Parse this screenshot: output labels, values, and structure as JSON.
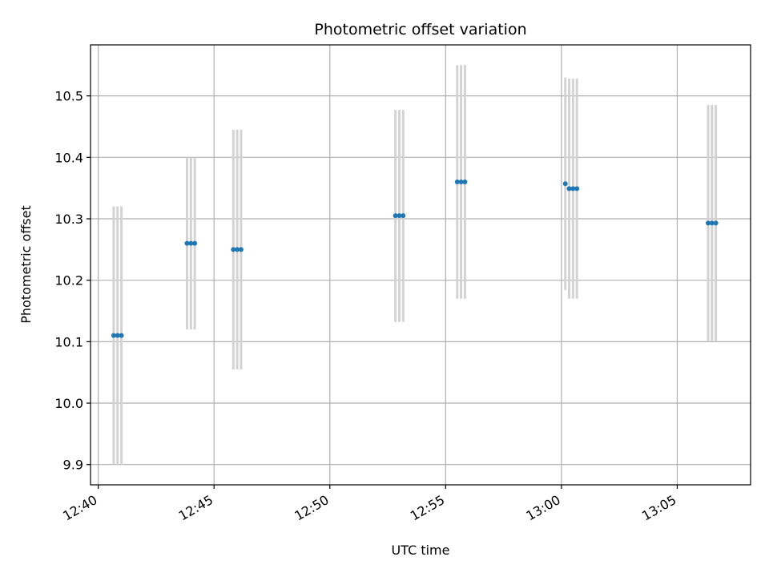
{
  "chart_data": {
    "type": "scatter",
    "title": "Photometric offset variation",
    "xlabel": "UTC time",
    "ylabel": "Photometric offset",
    "x_axis_type": "time",
    "xlim": [
      "12:39:40",
      "13:08:10"
    ],
    "ylim": [
      9.867,
      10.583
    ],
    "x_ticks": [
      "12:40",
      "12:45",
      "12:50",
      "12:55",
      "13:00",
      "13:05"
    ],
    "y_ticks": [
      9.9,
      10.0,
      10.1,
      10.2,
      10.3,
      10.4,
      10.5
    ],
    "grid": true,
    "marker_color": "#1f77b4",
    "errorbar_color": "#d3d3d3",
    "points": [
      {
        "t": "12:40:40",
        "y": 10.11,
        "ylo": 9.9,
        "yhi": 10.32
      },
      {
        "t": "12:40:50",
        "y": 10.11,
        "ylo": 9.9,
        "yhi": 10.32
      },
      {
        "t": "12:41:00",
        "y": 10.11,
        "ylo": 9.9,
        "yhi": 10.32
      },
      {
        "t": "12:43:50",
        "y": 10.26,
        "ylo": 10.12,
        "yhi": 10.4
      },
      {
        "t": "12:44:00",
        "y": 10.26,
        "ylo": 10.12,
        "yhi": 10.4
      },
      {
        "t": "12:44:10",
        "y": 10.26,
        "ylo": 10.12,
        "yhi": 10.4
      },
      {
        "t": "12:45:50",
        "y": 10.25,
        "ylo": 10.055,
        "yhi": 10.445
      },
      {
        "t": "12:46:00",
        "y": 10.25,
        "ylo": 10.055,
        "yhi": 10.445
      },
      {
        "t": "12:46:10",
        "y": 10.25,
        "ylo": 10.055,
        "yhi": 10.445
      },
      {
        "t": "12:52:50",
        "y": 10.305,
        "ylo": 10.132,
        "yhi": 10.477
      },
      {
        "t": "12:53:00",
        "y": 10.305,
        "ylo": 10.132,
        "yhi": 10.477
      },
      {
        "t": "12:53:10",
        "y": 10.305,
        "ylo": 10.132,
        "yhi": 10.477
      },
      {
        "t": "12:55:30",
        "y": 10.36,
        "ylo": 10.17,
        "yhi": 10.55
      },
      {
        "t": "12:55:40",
        "y": 10.36,
        "ylo": 10.17,
        "yhi": 10.55
      },
      {
        "t": "12:55:50",
        "y": 10.36,
        "ylo": 10.17,
        "yhi": 10.55
      },
      {
        "t": "13:00:10",
        "y": 10.357,
        "ylo": 10.184,
        "yhi": 10.53
      },
      {
        "t": "13:00:20",
        "y": 10.349,
        "ylo": 10.17,
        "yhi": 10.528
      },
      {
        "t": "13:00:30",
        "y": 10.349,
        "ylo": 10.17,
        "yhi": 10.528
      },
      {
        "t": "13:00:40",
        "y": 10.349,
        "ylo": 10.17,
        "yhi": 10.528
      },
      {
        "t": "13:06:20",
        "y": 10.293,
        "ylo": 10.1,
        "yhi": 10.485
      },
      {
        "t": "13:06:30",
        "y": 10.293,
        "ylo": 10.1,
        "yhi": 10.485
      },
      {
        "t": "13:06:40",
        "y": 10.293,
        "ylo": 10.1,
        "yhi": 10.485
      }
    ]
  }
}
